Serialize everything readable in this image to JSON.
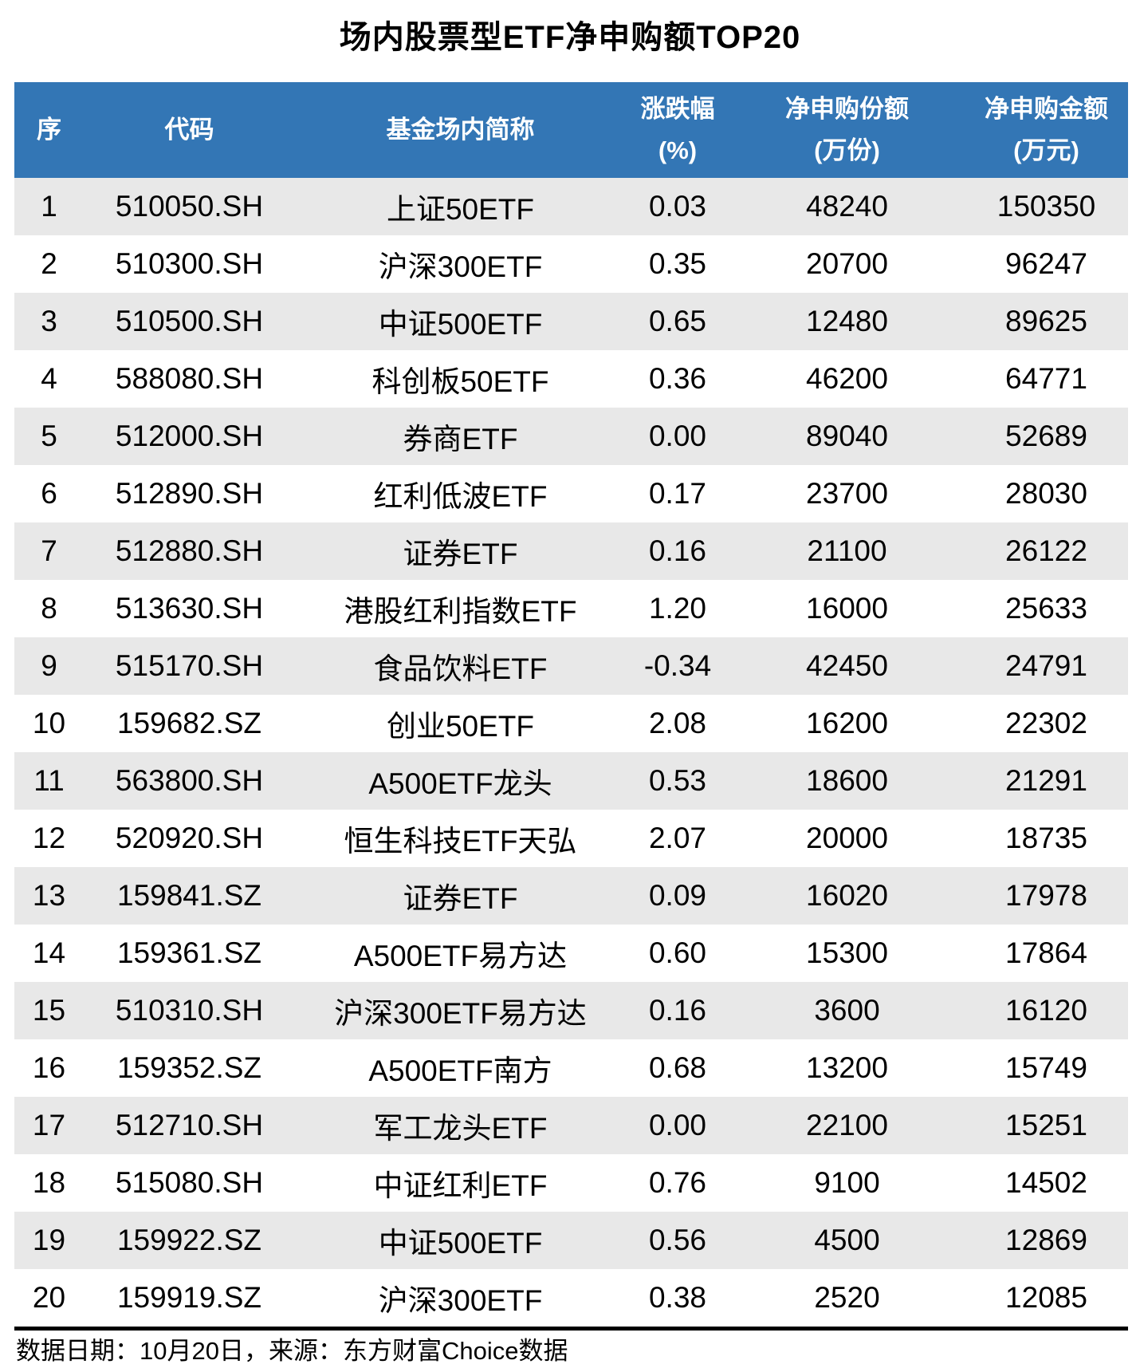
{
  "chart_data": {
    "type": "table",
    "title": "场内股票型ETF净申购额TOP20",
    "columns": [
      {
        "line1": "序",
        "line2": ""
      },
      {
        "line1": "代码",
        "line2": ""
      },
      {
        "line1": "基金场内简称",
        "line2": ""
      },
      {
        "line1": "涨跌幅",
        "line2": "(%)"
      },
      {
        "line1": "净申购份额",
        "line2": "(万份)"
      },
      {
        "line1": "净申购金额",
        "line2": "(万元)"
      }
    ],
    "rows": [
      {
        "num": "1",
        "code": "510050.SH",
        "name": "上证50ETF",
        "chg": "0.03",
        "shares": "48240",
        "amount": "150350"
      },
      {
        "num": "2",
        "code": "510300.SH",
        "name": "沪深300ETF",
        "chg": "0.35",
        "shares": "20700",
        "amount": "96247"
      },
      {
        "num": "3",
        "code": "510500.SH",
        "name": "中证500ETF",
        "chg": "0.65",
        "shares": "12480",
        "amount": "89625"
      },
      {
        "num": "4",
        "code": "588080.SH",
        "name": "科创板50ETF",
        "chg": "0.36",
        "shares": "46200",
        "amount": "64771"
      },
      {
        "num": "5",
        "code": "512000.SH",
        "name": "券商ETF",
        "chg": "0.00",
        "shares": "89040",
        "amount": "52689"
      },
      {
        "num": "6",
        "code": "512890.SH",
        "name": "红利低波ETF",
        "chg": "0.17",
        "shares": "23700",
        "amount": "28030"
      },
      {
        "num": "7",
        "code": "512880.SH",
        "name": "证券ETF",
        "chg": "0.16",
        "shares": "21100",
        "amount": "26122"
      },
      {
        "num": "8",
        "code": "513630.SH",
        "name": "港股红利指数ETF",
        "chg": "1.20",
        "shares": "16000",
        "amount": "25633"
      },
      {
        "num": "9",
        "code": "515170.SH",
        "name": "食品饮料ETF",
        "chg": "-0.34",
        "shares": "42450",
        "amount": "24791"
      },
      {
        "num": "10",
        "code": "159682.SZ",
        "name": "创业50ETF",
        "chg": "2.08",
        "shares": "16200",
        "amount": "22302"
      },
      {
        "num": "11",
        "code": "563800.SH",
        "name": "A500ETF龙头",
        "chg": "0.53",
        "shares": "18600",
        "amount": "21291"
      },
      {
        "num": "12",
        "code": "520920.SH",
        "name": "恒生科技ETF天弘",
        "chg": "2.07",
        "shares": "20000",
        "amount": "18735"
      },
      {
        "num": "13",
        "code": "159841.SZ",
        "name": "证券ETF",
        "chg": "0.09",
        "shares": "16020",
        "amount": "17978"
      },
      {
        "num": "14",
        "code": "159361.SZ",
        "name": "A500ETF易方达",
        "chg": "0.60",
        "shares": "15300",
        "amount": "17864"
      },
      {
        "num": "15",
        "code": "510310.SH",
        "name": "沪深300ETF易方达",
        "chg": "0.16",
        "shares": "3600",
        "amount": "16120"
      },
      {
        "num": "16",
        "code": "159352.SZ",
        "name": "A500ETF南方",
        "chg": "0.68",
        "shares": "13200",
        "amount": "15749"
      },
      {
        "num": "17",
        "code": "512710.SH",
        "name": "军工龙头ETF",
        "chg": "0.00",
        "shares": "22100",
        "amount": "15251"
      },
      {
        "num": "18",
        "code": "515080.SH",
        "name": "中证红利ETF",
        "chg": "0.76",
        "shares": "9100",
        "amount": "14502"
      },
      {
        "num": "19",
        "code": "159922.SZ",
        "name": "中证500ETF",
        "chg": "0.56",
        "shares": "4500",
        "amount": "12869"
      },
      {
        "num": "20",
        "code": "159919.SZ",
        "name": "沪深300ETF",
        "chg": "0.38",
        "shares": "2520",
        "amount": "12085"
      }
    ],
    "footer": "数据日期：10月20日，来源：东方财富Choice数据",
    "layout": {
      "banded_rows": true,
      "header_bg": "#3376B5",
      "header_text_color": "#FFFFFF",
      "row_alt_bg": "#E8E8E8",
      "row_bg": "#FFFFFF",
      "text_color": "#000000",
      "rule_color": "#000000",
      "legend_position": "none",
      "grid": false
    }
  }
}
